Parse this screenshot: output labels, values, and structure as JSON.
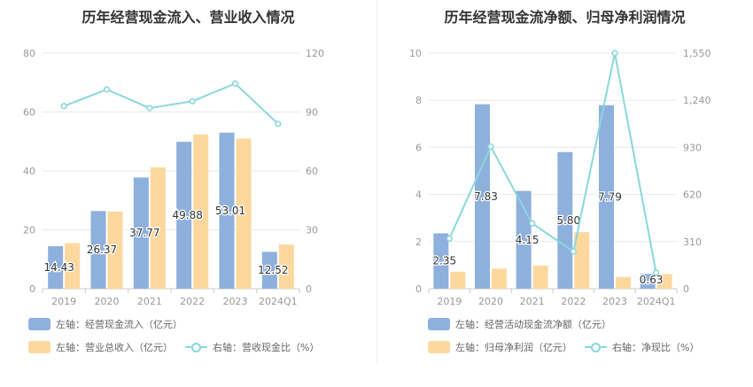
{
  "colors": {
    "bar_primary": "#8eb0dd",
    "bar_secondary": "#fdd89e",
    "line": "#8ad7db",
    "axis_text": "#999999",
    "grid": "#e8e8e8"
  },
  "chart_data": [
    {
      "type": "bar+line",
      "title": "历年经营现金流入、营业收入情况",
      "categories": [
        "2019",
        "2020",
        "2021",
        "2022",
        "2023",
        "2024Q1"
      ],
      "left_axis": {
        "min": 0,
        "max": 80,
        "ticks": [
          0,
          20,
          40,
          60,
          80
        ]
      },
      "right_axis": {
        "min": 0,
        "max": 120,
        "ticks": [
          0,
          30,
          60,
          90,
          120
        ]
      },
      "left_tick_labels": [
        "0",
        "20",
        "40",
        "60",
        "80"
      ],
      "right_tick_labels": [
        "0",
        "30",
        "60",
        "90",
        "120"
      ],
      "series": [
        {
          "name": "左轴：经营现金流入（亿元）",
          "kind": "bar",
          "axis": "left",
          "values": [
            14.43,
            26.37,
            37.77,
            49.88,
            53.01,
            12.52
          ],
          "labels": [
            "14.43",
            "26.37",
            "37.77",
            "49.88",
            "53.01",
            "12.52"
          ]
        },
        {
          "name": "左轴：营业总收入（亿元）",
          "kind": "bar",
          "axis": "left",
          "values": [
            15.5,
            26.2,
            41.2,
            52.4,
            51.0,
            15.0
          ]
        },
        {
          "name": "右轴：营收现金比（%）",
          "kind": "line",
          "axis": "right",
          "values": [
            93,
            101.5,
            92,
            95.5,
            104.5,
            84
          ]
        }
      ]
    },
    {
      "type": "bar+line",
      "title": "历年经营现金流净额、归母净利润情况",
      "categories": [
        "2019",
        "2020",
        "2021",
        "2022",
        "2023",
        "2024Q1"
      ],
      "left_axis": {
        "min": 0,
        "max": 10,
        "ticks": [
          0,
          2,
          4,
          6,
          8,
          10
        ]
      },
      "right_axis": {
        "min": 0,
        "max": 1550,
        "ticks": [
          0,
          310,
          620,
          930,
          1240,
          1550
        ]
      },
      "left_tick_labels": [
        "0",
        "2",
        "4",
        "6",
        "8",
        "10"
      ],
      "right_tick_labels": [
        "0",
        "310",
        "620",
        "930",
        "1,240",
        "1,550"
      ],
      "series": [
        {
          "name": "左轴：经营活动现金流净额（亿元）",
          "kind": "bar",
          "axis": "left",
          "values": [
            2.35,
            7.83,
            4.15,
            5.8,
            7.79,
            0.63
          ],
          "labels": [
            "2.35",
            "7.83",
            "4.15",
            "5.80",
            "7.79",
            "0.63"
          ]
        },
        {
          "name": "左轴：归母净利润（亿元）",
          "kind": "bar",
          "axis": "left",
          "values": [
            0.72,
            0.85,
            0.98,
            2.4,
            0.5,
            0.62
          ]
        },
        {
          "name": "右轴：净现比（%）",
          "kind": "line",
          "axis": "right",
          "values": [
            330,
            935,
            430,
            245,
            1550,
            105
          ]
        }
      ]
    }
  ]
}
